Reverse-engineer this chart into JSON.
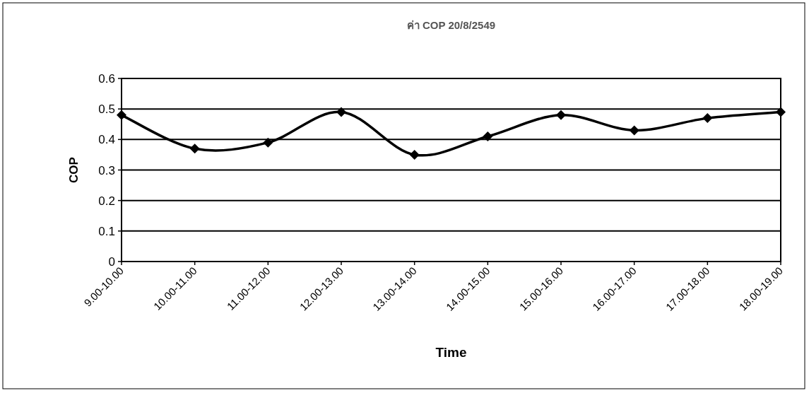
{
  "chart_data": {
    "type": "line",
    "title": "ค่า COP 20/8/2549",
    "xlabel": "Time",
    "ylabel": "COP",
    "categories": [
      "9.00-10.00",
      "10.00-11.00",
      "11.00-12.00",
      "12.00-13.00",
      "13.00-14.00",
      "14.00-15.00",
      "15.00-16.00",
      "16.00-17.00",
      "17.00-18.00",
      "18.00-19.00"
    ],
    "series": [
      {
        "color": "#000000",
        "values": [
          0.48,
          0.37,
          0.39,
          0.49,
          0.35,
          0.41,
          0.48,
          0.43,
          0.47,
          0.49
        ]
      }
    ],
    "ylim": [
      0,
      0.6
    ],
    "yticks": [
      0,
      0.1,
      0.2,
      0.3,
      0.4,
      0.5,
      0.6
    ],
    "grid": "y",
    "marker": "diamond",
    "line_style": "solid"
  }
}
